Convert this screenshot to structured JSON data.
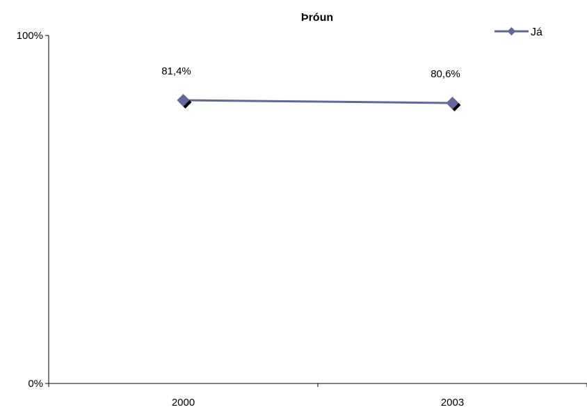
{
  "chart_data": {
    "type": "line",
    "title": "Þróun",
    "xlabel": "",
    "ylabel": "",
    "categories": [
      "2000",
      "2003"
    ],
    "ylim": [
      0,
      100
    ],
    "y_tick_labels": [
      "0%",
      "100%"
    ],
    "grid": false,
    "legend_position": "top-right",
    "series": [
      {
        "name": "Já",
        "values": [
          81.4,
          80.6
        ],
        "data_labels": [
          "81,4%",
          "80,6%"
        ],
        "color": "#66669a",
        "marker": "diamond"
      }
    ]
  }
}
